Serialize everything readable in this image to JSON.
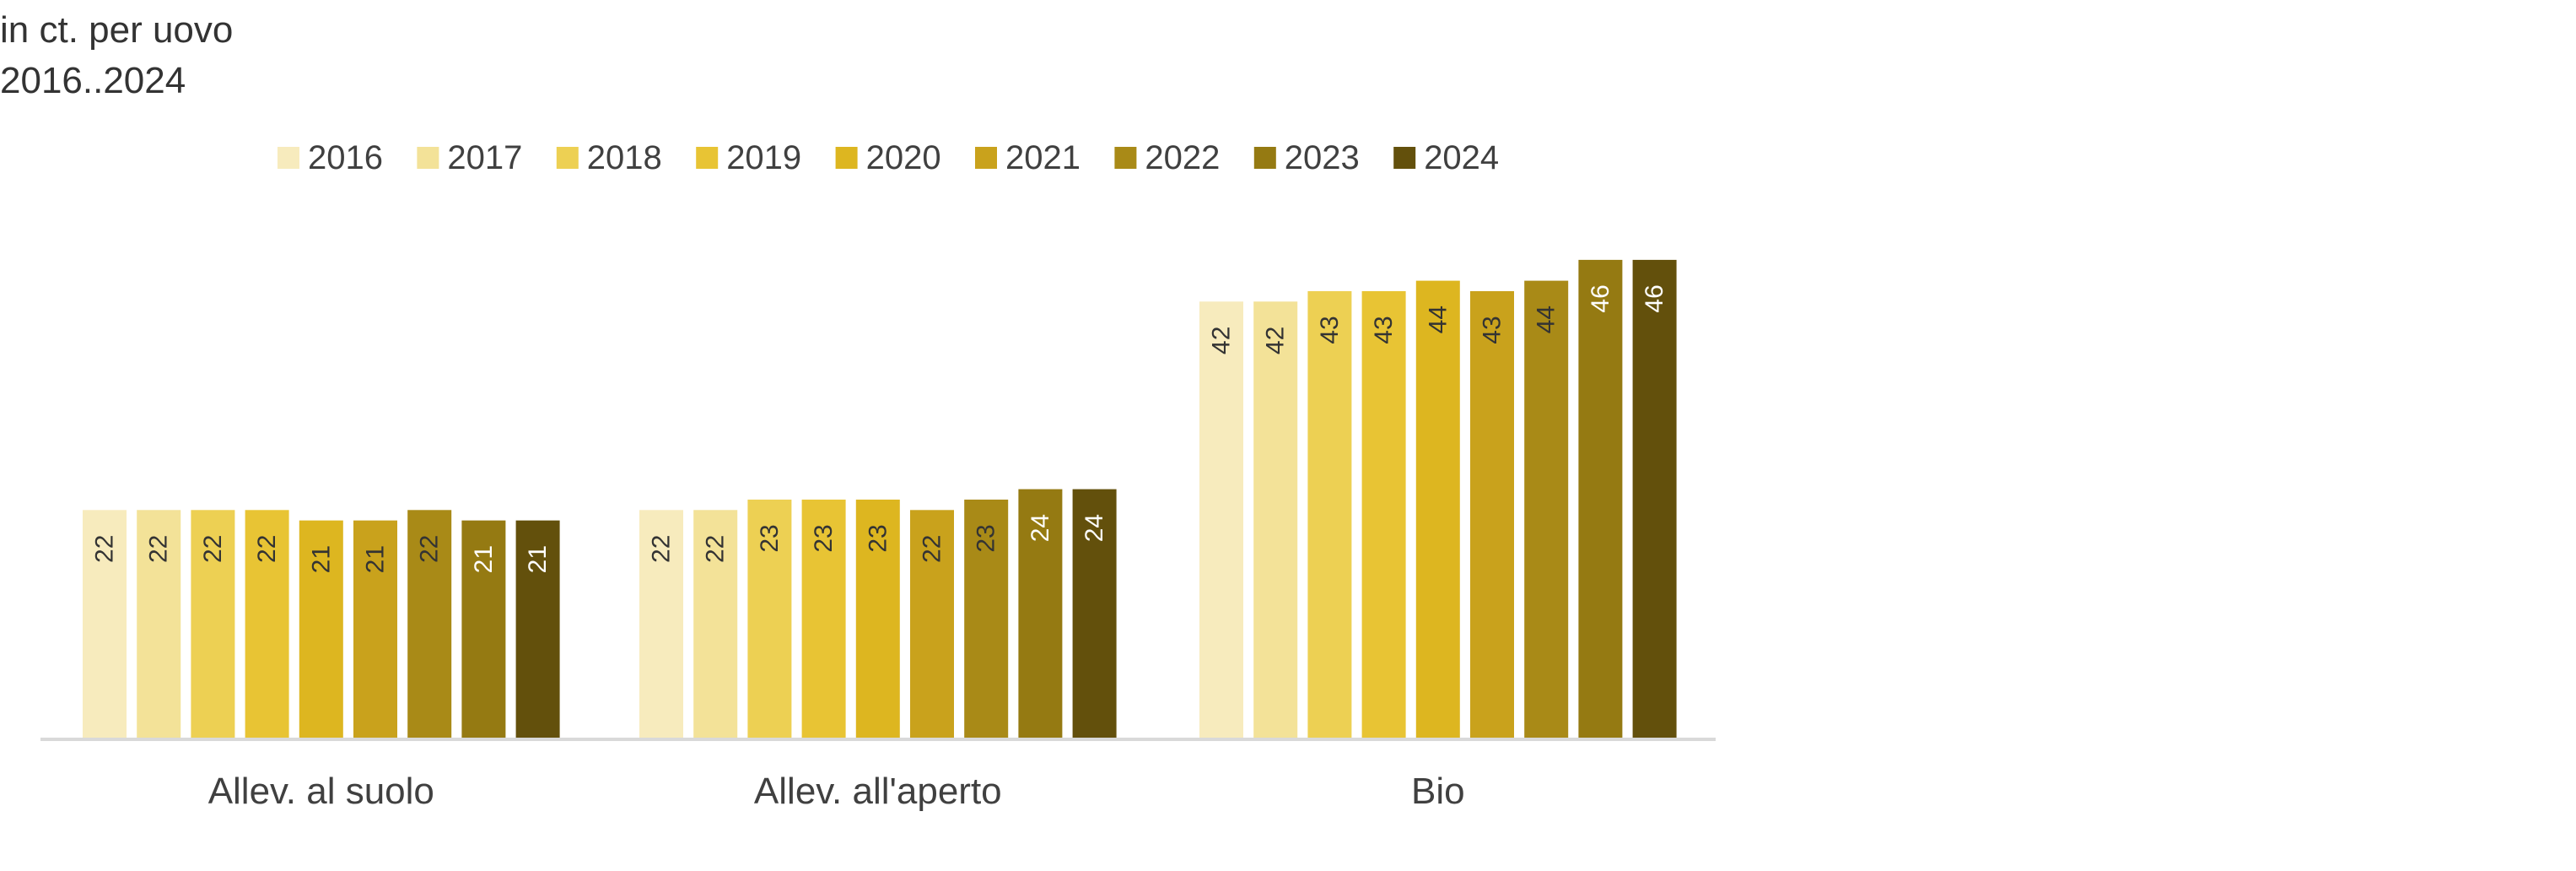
{
  "chart_data": {
    "type": "bar",
    "title": "in ct. per uovo",
    "subtitle": "2016..2024",
    "xlabel": "",
    "ylabel": "",
    "ylim": [
      0,
      50
    ],
    "grid": false,
    "legend_position": "top",
    "categories": [
      "Allev. al suolo",
      "Allev. all'aperto",
      "Bio"
    ],
    "series": [
      {
        "name": "2016",
        "color": "#F7EBBD",
        "label_color": "#333333",
        "values": [
          22,
          22,
          42
        ]
      },
      {
        "name": "2017",
        "color": "#F3E298",
        "label_color": "#333333",
        "values": [
          22,
          22,
          42
        ]
      },
      {
        "name": "2018",
        "color": "#EDD053",
        "label_color": "#333333",
        "values": [
          22,
          23,
          43
        ]
      },
      {
        "name": "2019",
        "color": "#E8C434",
        "label_color": "#333333",
        "values": [
          22,
          23,
          43
        ]
      },
      {
        "name": "2020",
        "color": "#DDB620",
        "label_color": "#333333",
        "values": [
          21,
          23,
          44
        ]
      },
      {
        "name": "2021",
        "color": "#C9A21C",
        "label_color": "#333333",
        "values": [
          21,
          22,
          43
        ]
      },
      {
        "name": "2022",
        "color": "#A98A17",
        "label_color": "#333333",
        "values": [
          22,
          23,
          44
        ]
      },
      {
        "name": "2023",
        "color": "#957A12",
        "label_color": "#ffffff",
        "values": [
          21,
          24,
          46
        ]
      },
      {
        "name": "2024",
        "color": "#63500C",
        "label_color": "#ffffff",
        "values": [
          21,
          24,
          46
        ]
      }
    ]
  }
}
